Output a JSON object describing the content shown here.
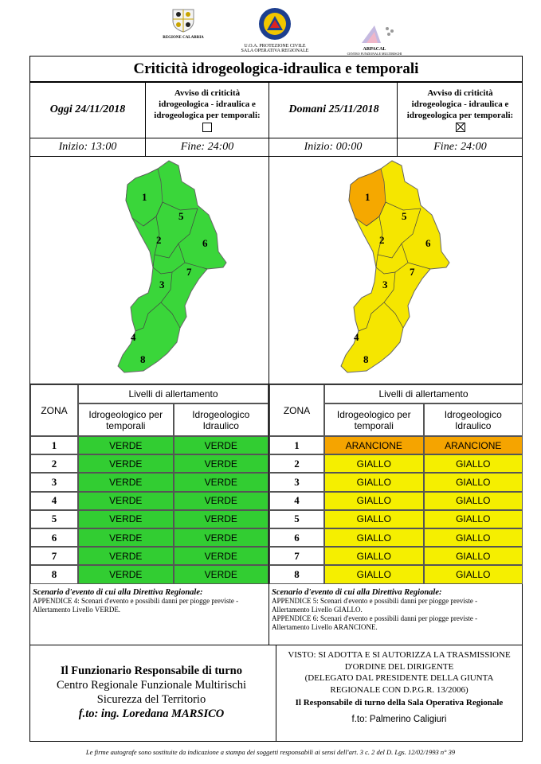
{
  "header": {
    "logo_left_text": "REGIONE CALABRIA",
    "logo_center_line1": "U.O.A. PROTEZIONE CIVILE",
    "logo_center_line2": "SALA OPERATIVA REGIONALE",
    "logo_right_text": "ARPACAL",
    "logo_right_sub": "CENTRO FUNZIONALE MULTIRISCHI"
  },
  "title": "Criticità idrogeologica-idraulica e temporali",
  "left": {
    "date": "Oggi 24/11/2018",
    "avviso_l1": "Avviso di criticità",
    "avviso_l2": "idrogeologica - idraulica e",
    "avviso_l3": "idrogeologica per temporali:",
    "avviso_checked": false,
    "inizio": "Inizio: 13:00",
    "fine": "Fine: 24:00",
    "map_color": "#3ad63a",
    "zone1_color": "#3ad63a",
    "zones": [
      {
        "zona": "1",
        "idro_temp": "VERDE",
        "idro_idr": "VERDE",
        "color": "#32cd32"
      },
      {
        "zona": "2",
        "idro_temp": "VERDE",
        "idro_idr": "VERDE",
        "color": "#32cd32"
      },
      {
        "zona": "3",
        "idro_temp": "VERDE",
        "idro_idr": "VERDE",
        "color": "#32cd32"
      },
      {
        "zona": "4",
        "idro_temp": "VERDE",
        "idro_idr": "VERDE",
        "color": "#32cd32"
      },
      {
        "zona": "5",
        "idro_temp": "VERDE",
        "idro_idr": "VERDE",
        "color": "#32cd32"
      },
      {
        "zona": "6",
        "idro_temp": "VERDE",
        "idro_idr": "VERDE",
        "color": "#32cd32"
      },
      {
        "zona": "7",
        "idro_temp": "VERDE",
        "idro_idr": "VERDE",
        "color": "#32cd32"
      },
      {
        "zona": "8",
        "idro_temp": "VERDE",
        "idro_idr": "VERDE",
        "color": "#32cd32"
      }
    ],
    "scenario_title": "Scenario d'evento di cui alla Direttiva Regionale:",
    "scenario_lines": [
      "APPENDICE 4: Scenari d'evento e possibili danni per piogge previste -",
      "Allertamento Livello VERDE."
    ]
  },
  "right": {
    "date": "Domani 25/11/2018",
    "avviso_l1": "Avviso di criticità",
    "avviso_l2": "idrogeologica - idraulica e",
    "avviso_l3": "idrogeologica per temporali:",
    "avviso_checked": true,
    "inizio": "Inizio: 00:00",
    "fine": "Fine: 24:00",
    "map_color": "#f5e600",
    "zone1_color": "#f5a800",
    "zones": [
      {
        "zona": "1",
        "idro_temp": "ARANCIONE",
        "idro_idr": "ARANCIONE",
        "color": "#f5a400"
      },
      {
        "zona": "2",
        "idro_temp": "GIALLO",
        "idro_idr": "GIALLO",
        "color": "#f5ef00"
      },
      {
        "zona": "3",
        "idro_temp": "GIALLO",
        "idro_idr": "GIALLO",
        "color": "#f5ef00"
      },
      {
        "zona": "4",
        "idro_temp": "GIALLO",
        "idro_idr": "GIALLO",
        "color": "#f5ef00"
      },
      {
        "zona": "5",
        "idro_temp": "GIALLO",
        "idro_idr": "GIALLO",
        "color": "#f5ef00"
      },
      {
        "zona": "6",
        "idro_temp": "GIALLO",
        "idro_idr": "GIALLO",
        "color": "#f5ef00"
      },
      {
        "zona": "7",
        "idro_temp": "GIALLO",
        "idro_idr": "GIALLO",
        "color": "#f5ef00"
      },
      {
        "zona": "8",
        "idro_temp": "GIALLO",
        "idro_idr": "GIALLO",
        "color": "#f5ef00"
      }
    ],
    "scenario_title": "Scenario d'evento di cui alla Direttiva Regionale:",
    "scenario_lines": [
      "APPENDICE 5: Scenari d'evento e possibili danni per piogge previste -",
      "Allertamento Livello GIALLO.",
      "APPENDICE 6: Scenari d'evento e possibili danni per piogge previste -",
      "Allertamento Livello ARANCIONE."
    ]
  },
  "table_headers": {
    "zona": "ZONA",
    "livelli": "Livelli di allertamento",
    "idro_temp_l1": "Idrogeologico per",
    "idro_temp_l2": "temporali",
    "idro_idr_l1": "Idrogeologico",
    "idro_idr_l2": "Idraulico"
  },
  "signature_left": {
    "l1": "Il Funzionario Responsabile di turno",
    "l2": "Centro Regionale Funzionale Multirischi",
    "l3": "Sicurezza del Territorio",
    "l4": "f.to: ing. Loredana MARSICO"
  },
  "signature_right": {
    "l1": "VISTO: SI ADOTTA E SI AUTORIZZA LA TRASMISSIONE",
    "l2": "D'ORDINE DEL DIRIGENTE",
    "l3": "(DELEGATO DAL PRESIDENTE DELLA GIUNTA",
    "l4": "REGIONALE CON D.P.G.R. 13/2006)",
    "l5": "Il Responsabile di turno della Sala Operativa Regionale",
    "l6": "f.to: Palmerino Caligiuri"
  },
  "footer": "Le firme autografe sono sostituite da indicazione a stampa dei soggetti responsabili ai sensi dell'art. 3 c. 2 del D. Lgs. 12/02/1993 n° 39"
}
